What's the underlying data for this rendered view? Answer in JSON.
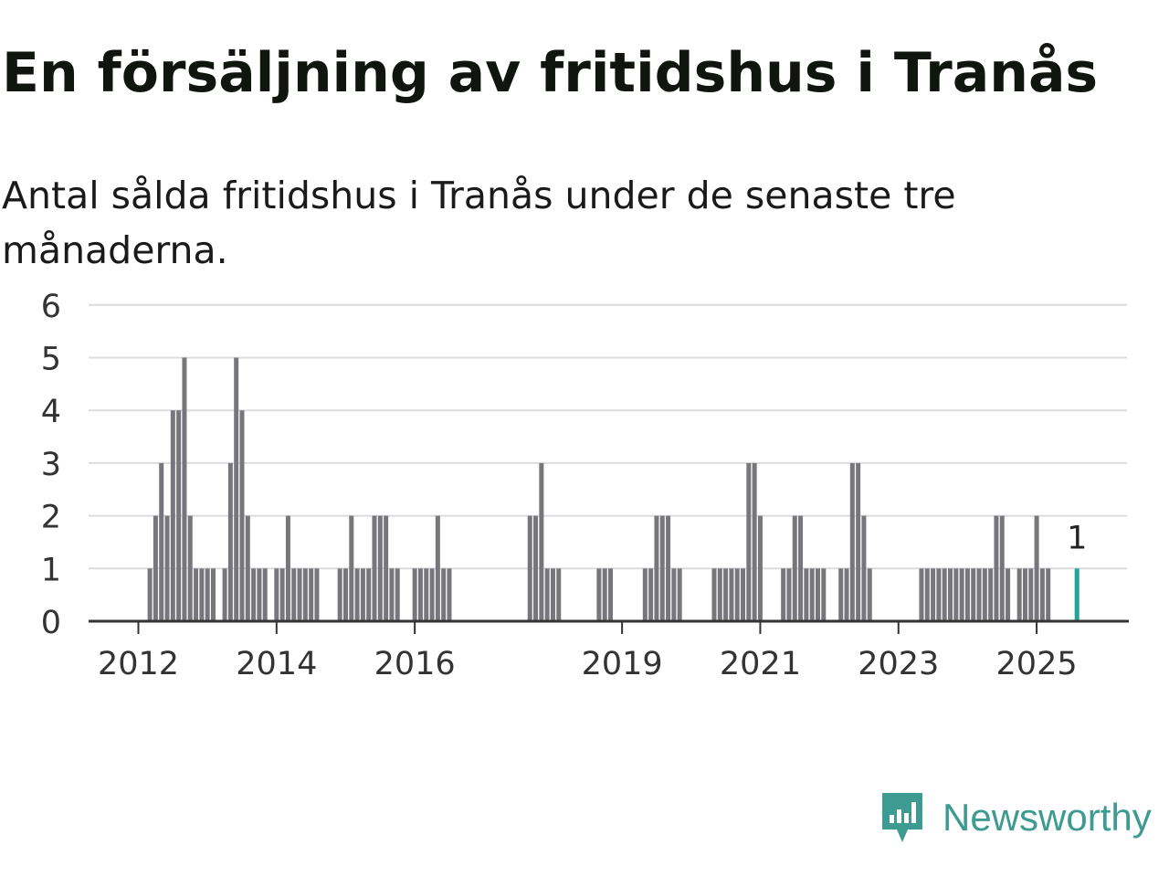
{
  "title": "En försäljning av fritidshus i Tranås",
  "subtitle": "Antal sålda fritidshus i Tranås under de senaste tre månaderna.",
  "brand": {
    "name": "Newsworthy",
    "icon": "newsworthy-logo-icon",
    "color": "#3d9b91"
  },
  "chart_data": {
    "type": "bar",
    "x_unit": "month",
    "y_ticks": [
      0,
      1,
      2,
      3,
      4,
      5,
      6
    ],
    "ylim": [
      0,
      6
    ],
    "x_ticks": [
      "2012",
      "2014",
      "2016",
      "2019",
      "2021",
      "2023",
      "2025"
    ],
    "grid": true,
    "bar_color": "#76767c",
    "highlight_color": "#21a49a",
    "highlight_label": "1",
    "series": [
      {
        "start": "2012-03",
        "values": [
          1,
          2,
          3,
          2,
          4,
          4,
          5,
          2,
          1,
          1,
          1,
          1
        ]
      },
      {
        "start": "2013-04",
        "values": [
          1,
          3,
          5,
          4,
          2,
          1,
          1,
          1
        ]
      },
      {
        "start": "2014-01",
        "values": [
          1,
          1,
          2,
          1,
          1,
          1,
          1,
          1
        ]
      },
      {
        "start": "2014-12",
        "values": [
          1,
          1,
          2,
          1,
          1,
          1,
          2,
          2,
          2,
          1,
          1
        ]
      },
      {
        "start": "2016-01",
        "values": [
          1,
          1,
          1,
          1,
          2,
          1,
          1
        ]
      },
      {
        "start": "2017-09",
        "values": [
          2,
          2,
          3,
          1,
          1,
          1
        ]
      },
      {
        "start": "2018-09",
        "values": [
          1,
          1,
          1
        ]
      },
      {
        "start": "2019-05",
        "values": [
          1,
          1,
          2,
          2,
          2,
          1,
          1
        ]
      },
      {
        "start": "2020-05",
        "values": [
          1,
          1,
          1,
          1,
          1,
          1,
          3,
          3,
          2
        ]
      },
      {
        "start": "2021-05",
        "values": [
          1,
          1,
          2,
          2,
          1
        ]
      },
      {
        "start": "2021-10",
        "values": [
          1,
          1,
          1
        ]
      },
      {
        "start": "2022-03",
        "values": [
          1,
          1,
          3,
          3,
          2,
          1
        ]
      },
      {
        "start": "2023-05",
        "values": [
          1,
          1,
          1,
          1,
          1,
          1,
          1,
          1,
          1,
          1,
          1,
          1,
          1,
          2,
          2,
          1
        ]
      },
      {
        "start": "2024-10",
        "values": [
          1,
          1,
          1,
          2,
          1,
          1
        ]
      },
      {
        "start": "2025-08",
        "values": [
          1
        ],
        "highlight": true
      }
    ]
  }
}
